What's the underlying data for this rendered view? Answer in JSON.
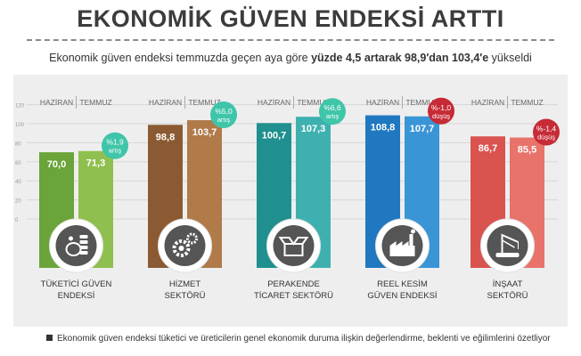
{
  "title": "EKONOMİK GÜVEN ENDEKSİ ARTTI",
  "subtitle": {
    "pre": "Ekonomik güven endeksi temmuzda geçen aya göre ",
    "bold": "yüzde 4,5 artarak 98,9'dan 103,4'e",
    "post": " yükseldi"
  },
  "footer": "Ekonomik güven endeksi tüketici ve üreticilerin genel ekonomik duruma ilişkin değerlendirme, beklenti ve eğilimlerini özetliyor",
  "chart_data": {
    "type": "bar",
    "series": [
      {
        "name": "HAZİRAN"
      },
      {
        "name": "TEMMUZ"
      }
    ],
    "y_ticks": [
      "0",
      "20",
      "40",
      "60",
      "80",
      "100",
      "120"
    ],
    "ylim": [
      0,
      120
    ],
    "grid": true,
    "groups": [
      {
        "label": [
          "TÜKETİCİ GÜVEN",
          "ENDEKSİ"
        ],
        "icon": "piggy-bank-icon",
        "values": [
          70.0,
          71.3
        ],
        "value_labels": [
          "70,0",
          "71,3"
        ],
        "change": [
          "%1,9",
          "artış"
        ],
        "trend": "up",
        "colors": [
          "#6aa43a",
          "#8fc04f"
        ]
      },
      {
        "label": [
          "HİZMET",
          "SEKTÖRÜ"
        ],
        "icon": "gears-icon",
        "values": [
          98.8,
          103.7
        ],
        "value_labels": [
          "98,8",
          "103,7"
        ],
        "change": [
          "%5,0",
          "artış"
        ],
        "trend": "up",
        "colors": [
          "#8b5a32",
          "#b07a49"
        ]
      },
      {
        "label": [
          "PERAKENDE",
          "TİCARET SEKTÖRÜ"
        ],
        "icon": "open-box-icon",
        "values": [
          100.7,
          107.3
        ],
        "value_labels": [
          "100,7",
          "107,3"
        ],
        "change": [
          "%6,6",
          "artış"
        ],
        "trend": "up",
        "colors": [
          "#1f8f8f",
          "#3fb0b0"
        ]
      },
      {
        "label": [
          "REEL KESİM",
          "GÜVEN ENDEKSİ"
        ],
        "icon": "factory-icon",
        "values": [
          108.8,
          107.7
        ],
        "value_labels": [
          "108,8",
          "107,7"
        ],
        "change": [
          "%-1,0",
          "düşüş"
        ],
        "trend": "down",
        "colors": [
          "#1f78c0",
          "#3a95d6"
        ]
      },
      {
        "label": [
          "İNŞAAT",
          "SEKTÖRÜ"
        ],
        "icon": "crane-icon",
        "values": [
          86.7,
          85.5
        ],
        "value_labels": [
          "86,7",
          "85,5"
        ],
        "change": [
          "%-1,4",
          "düşüş"
        ],
        "trend": "down",
        "colors": [
          "#d9534f",
          "#e8736b"
        ]
      }
    ],
    "badge_colors": {
      "up": "#3fc5a9",
      "down": "#c62b36"
    }
  }
}
